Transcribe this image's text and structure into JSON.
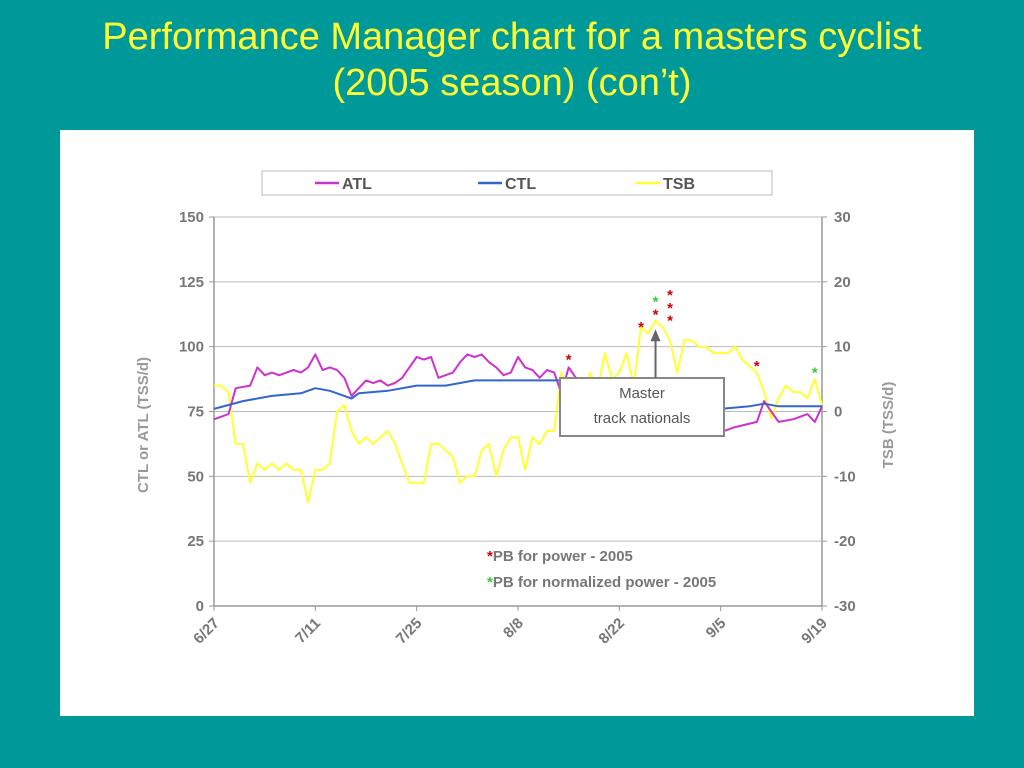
{
  "slide": {
    "title_line1": "Performance Manager chart for a masters cyclist",
    "title_line2": "(2005 season) (con’t)"
  },
  "colors": {
    "background": "#00999a",
    "title": "#ffff33",
    "atl": "#cc33cc",
    "ctl": "#3366cc",
    "tsb": "#ffff33",
    "pb_power": "#cc0000",
    "pb_normalized": "#33cc33"
  },
  "chart_data": {
    "type": "line",
    "title": "",
    "ylabel": "CTL or ATL (TSS/d)",
    "y2label": "TSB (TSS/d)",
    "ylim": [
      0,
      150
    ],
    "y2lim": [
      -30,
      30
    ],
    "yticks": [
      "150",
      "125",
      "100",
      "75",
      "50",
      "25",
      "0"
    ],
    "y2ticks": [
      "30",
      "20",
      "10",
      "0",
      "-10",
      "-20",
      "-30"
    ],
    "xlim": [
      0,
      84
    ],
    "xticks": [
      {
        "x": 0,
        "label": "6/27"
      },
      {
        "x": 14,
        "label": "7/11"
      },
      {
        "x": 28,
        "label": "7/25"
      },
      {
        "x": 42,
        "label": "8/8"
      },
      {
        "x": 56,
        "label": "8/22"
      },
      {
        "x": 70,
        "label": "9/5"
      },
      {
        "x": 84,
        "label": "9/19"
      }
    ],
    "grid": "horizontal",
    "legend_position": "top",
    "legend": [
      "ATL",
      "CTL",
      "TSB"
    ],
    "series": [
      {
        "name": "ATL",
        "axis": "left",
        "color": "#cc33cc",
        "x": [
          0,
          2,
          3,
          5,
          6,
          7,
          8,
          9,
          10,
          11,
          12,
          13,
          14,
          15,
          16,
          17,
          18,
          19,
          20,
          21,
          22,
          23,
          24,
          25,
          26,
          27,
          28,
          29,
          30,
          31,
          32,
          33,
          34,
          35,
          36,
          37,
          38,
          39,
          40,
          41,
          42,
          43,
          44,
          45,
          46,
          47,
          48,
          49,
          50,
          51,
          52,
          53,
          70,
          72,
          75,
          76,
          77,
          78,
          80,
          81,
          82,
          83,
          84
        ],
        "y": [
          72,
          74,
          84,
          85,
          92,
          89,
          90,
          89,
          90,
          91,
          90,
          92,
          97,
          91,
          92,
          91,
          88,
          81,
          84,
          87,
          86,
          87,
          85,
          86,
          88,
          92,
          96,
          95,
          96,
          88,
          89,
          90,
          94,
          97,
          96,
          97,
          94,
          92,
          89,
          90,
          96,
          92,
          91,
          88,
          91,
          90,
          82,
          92,
          88,
          86,
          84,
          85,
          67,
          69,
          71,
          79,
          75,
          71,
          72,
          73,
          74,
          71,
          77
        ]
      },
      {
        "name": "CTL",
        "axis": "left",
        "color": "#3366cc",
        "x": [
          0,
          4,
          8,
          12,
          14,
          16,
          18,
          19,
          20,
          24,
          28,
          32,
          36,
          40,
          44,
          48,
          50,
          52,
          70,
          74,
          76,
          78,
          80,
          82,
          84
        ],
        "y": [
          76,
          79,
          81,
          82,
          84,
          83,
          81,
          80,
          82,
          83,
          85,
          85,
          87,
          87,
          87,
          87,
          86,
          86,
          76,
          77,
          78,
          77,
          77,
          77,
          77
        ]
      },
      {
        "name": "TSB",
        "axis": "right",
        "color": "#ffff33",
        "x": [
          0,
          1,
          2,
          3,
          4,
          5,
          6,
          7,
          8,
          9,
          10,
          11,
          12,
          13,
          14,
          15,
          16,
          17,
          18,
          19,
          20,
          21,
          22,
          23,
          24,
          25,
          26,
          27,
          28,
          29,
          30,
          31,
          32,
          33,
          34,
          35,
          36,
          37,
          38,
          39,
          40,
          41,
          42,
          43,
          44,
          45,
          46,
          47,
          48,
          49,
          50,
          51,
          52,
          53,
          54,
          55,
          56,
          57,
          58,
          59,
          60,
          61,
          62,
          63,
          64,
          65,
          66,
          67,
          68,
          69,
          70,
          71,
          72,
          73,
          74,
          75,
          76,
          77,
          78,
          79,
          80,
          81,
          82,
          83,
          84
        ],
        "y": [
          4,
          4,
          3,
          -5,
          -5,
          -11,
          -8,
          -9,
          -8,
          -9,
          -8,
          -9,
          -9,
          -14,
          -9,
          -9,
          -8,
          0,
          1,
          -3,
          -5,
          -4,
          -5,
          -4,
          -3,
          -5,
          -8,
          -11,
          -11,
          -11,
          -5,
          -5,
          -6,
          -7,
          -11,
          -10,
          -10,
          -6,
          -5,
          -10,
          -6,
          -4,
          -4,
          -9,
          -4,
          -5,
          -3,
          -3,
          6,
          3,
          4,
          2,
          6,
          3,
          9,
          5,
          6,
          9,
          4,
          13,
          12,
          14,
          13,
          11,
          6,
          11,
          11,
          10,
          10,
          9,
          9,
          9,
          10,
          8,
          7,
          6,
          3,
          -1,
          2,
          4,
          3,
          3,
          2,
          5,
          1
        ]
      }
    ],
    "markers": [
      {
        "axis": "right",
        "x": 49,
        "y": 8,
        "color": "#cc0000",
        "symbol": "*"
      },
      {
        "axis": "right",
        "x": 59,
        "y": 13,
        "color": "#cc0000",
        "symbol": "*"
      },
      {
        "axis": "right",
        "x": 61,
        "y": 15,
        "color": "#cc0000",
        "symbol": "*"
      },
      {
        "axis": "right",
        "x": 61,
        "y": 17,
        "color": "#33cc33",
        "symbol": "*"
      },
      {
        "axis": "right",
        "x": 63,
        "y": 14,
        "color": "#cc0000",
        "symbol": "*"
      },
      {
        "axis": "right",
        "x": 63,
        "y": 16,
        "color": "#cc0000",
        "symbol": "*"
      },
      {
        "axis": "right",
        "x": 63,
        "y": 18,
        "color": "#cc0000",
        "symbol": "*"
      },
      {
        "axis": "right",
        "x": 75,
        "y": 7,
        "color": "#cc0000",
        "symbol": "*"
      },
      {
        "axis": "right",
        "x": 83,
        "y": 6,
        "color": "#33cc33",
        "symbol": "*"
      }
    ],
    "annotation": {
      "line1": "Master",
      "line2": "track nationals",
      "arrow_to_x": 61,
      "arrow_to_y2": 13
    },
    "notes": [
      {
        "star": "*",
        "text": "PB for power - 2005",
        "color": "#cc0000"
      },
      {
        "star": "*",
        "text": "PB for normalized power - 2005",
        "color": "#33cc33"
      }
    ]
  }
}
